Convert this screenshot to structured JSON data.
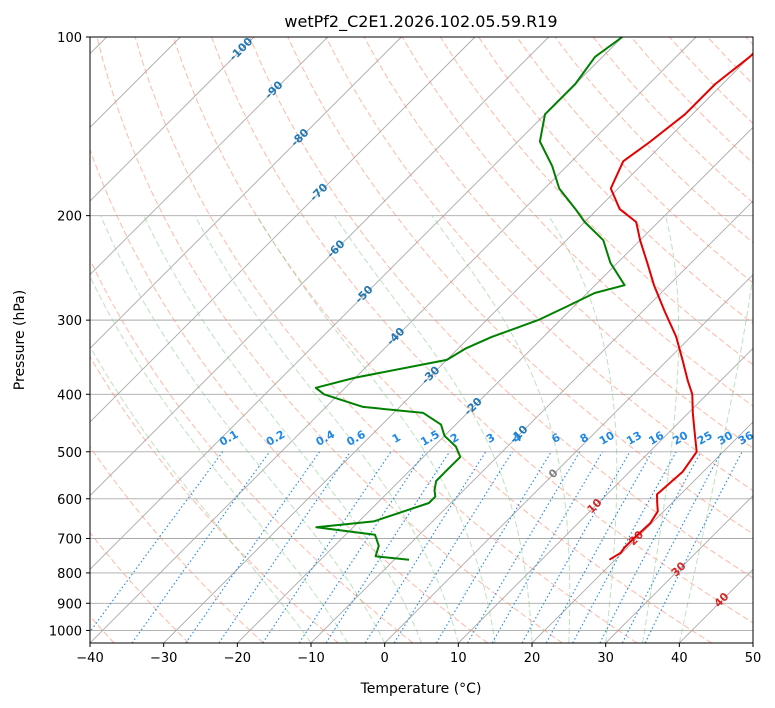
{
  "chart_data": {
    "type": "line",
    "title": "wetPf2_C2E1.2026.102.05.59.R19",
    "xlabel": "Temperature (°C)",
    "ylabel": "Pressure (hPa)",
    "xlim": [
      -40,
      50
    ],
    "ylim": [
      1050,
      100
    ],
    "x_ticks": [
      -40,
      -30,
      -20,
      -10,
      0,
      10,
      20,
      30,
      40,
      50
    ],
    "x_tick_labels": [
      "−40",
      "−30",
      "−20",
      "−10",
      "0",
      "10",
      "20",
      "30",
      "40",
      "50"
    ],
    "y_ticks": [
      100,
      200,
      300,
      400,
      500,
      600,
      700,
      800,
      900,
      1000
    ],
    "y_tick_labels": [
      "100",
      "200",
      "300",
      "400",
      "500",
      "600",
      "700",
      "800",
      "900",
      "1000"
    ],
    "grid": true,
    "colors": {
      "temperature": "#e50000",
      "dewpoint": "#008000",
      "isotherm_lines": "#a9a9a9",
      "dry_adiabat": "#ff8060",
      "moist_adiabat": "#88c888",
      "mixing_ratio": "#1e88e5",
      "isotherm_label_cold": "#1f77b4",
      "isotherm_label_zero": "#808080",
      "isotherm_label_warm": "#d62728"
    },
    "series": [
      {
        "name": "Temperature",
        "p": [
          760,
          740,
          725,
          700,
          660,
          630,
          610,
          590,
          540,
          500,
          470,
          430,
          400,
          380,
          350,
          320,
          290,
          262,
          240,
          220,
          205,
          195,
          180,
          162,
          150,
          135,
          120,
          108,
          100
        ],
        "t": [
          19.2,
          19.8,
          19.6,
          19.6,
          19.8,
          19.2,
          18.0,
          16.8,
          17.2,
          16.4,
          14.0,
          10.6,
          8.0,
          5.6,
          2.0,
          -2.0,
          -7.0,
          -12.0,
          -16.0,
          -20.0,
          -23.0,
          -27.0,
          -31.0,
          -33.0,
          -32.0,
          -31.0,
          -31.0,
          -30.0,
          -30.0
        ]
      },
      {
        "name": "Dewpoint",
        "p": [
          760,
          750,
          720,
          690,
          670,
          655,
          610,
          595,
          580,
          560,
          540,
          510,
          490,
          470,
          450,
          430,
          420,
          400,
          390,
          375,
          350,
          335,
          320,
          300,
          285,
          270,
          262,
          240,
          220,
          205,
          195,
          180,
          165,
          150,
          135,
          120,
          108,
          100
        ],
        "t": [
          -8,
          -13,
          -14,
          -16,
          -25,
          -18,
          -13,
          -13,
          -14,
          -15,
          -15,
          -15,
          -17,
          -20,
          -22,
          -26,
          -35,
          -42,
          -44,
          -40,
          -30,
          -29,
          -27,
          -23,
          -21,
          -19,
          -16,
          -21,
          -25,
          -30,
          -33,
          -38,
          -42,
          -47,
          -50,
          -50,
          -51,
          -50
        ]
      }
    ],
    "isotherm_labels": [
      {
        "value": -100,
        "text": "-100",
        "p": 105
      },
      {
        "value": -90,
        "text": "-90",
        "p": 123
      },
      {
        "value": -80,
        "text": "-80",
        "p": 148
      },
      {
        "value": -70,
        "text": "-70",
        "p": 183
      },
      {
        "value": -60,
        "text": "-60",
        "p": 228
      },
      {
        "value": -50,
        "text": "-50",
        "p": 272
      },
      {
        "value": -40,
        "text": "-40",
        "p": 320
      },
      {
        "value": -30,
        "text": "-30",
        "p": 372
      },
      {
        "value": -20,
        "text": "-20",
        "p": 420
      },
      {
        "value": -10,
        "text": "-10",
        "p": 468
      },
      {
        "value": 0,
        "text": "0",
        "p": 545
      },
      {
        "value": 10,
        "text": "10",
        "p": 618
      },
      {
        "value": 20,
        "text": "20",
        "p": 700
      },
      {
        "value": 30,
        "text": "30",
        "p": 790
      },
      {
        "value": 40,
        "text": "40",
        "p": 890
      }
    ],
    "mixing_ratio_lines": {
      "values": [
        0.1,
        0.2,
        0.4,
        0.6,
        1,
        1.5,
        2,
        3,
        4,
        6,
        8,
        10,
        13,
        16,
        20,
        25,
        30,
        36
      ],
      "labels": [
        "0.1",
        "0.2",
        "0.4",
        "0.6",
        "1",
        "1.5",
        "2",
        "3",
        "4",
        "6",
        "8",
        "10",
        "13",
        "16",
        "20",
        "25",
        "30",
        "36"
      ],
      "label_pressure": 480,
      "p_top": 500
    },
    "dry_adiabats_theta": [
      -40,
      -30,
      -20,
      -10,
      0,
      10,
      20,
      30,
      40,
      50,
      60,
      70,
      80,
      90,
      100,
      110,
      120,
      130,
      140,
      150,
      160,
      170,
      180,
      190,
      200,
      210,
      220
    ],
    "moist_adiabats_start": [
      -10,
      -5,
      0,
      5,
      10,
      15,
      20,
      25,
      30,
      35,
      40
    ]
  }
}
